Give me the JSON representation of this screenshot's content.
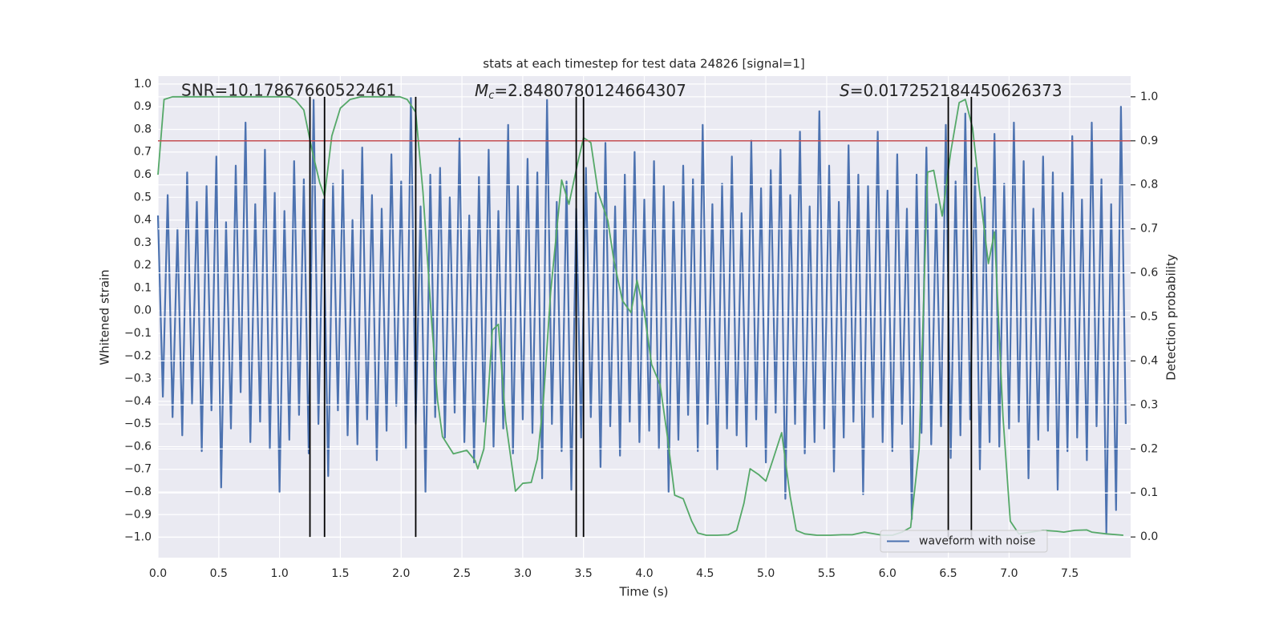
{
  "chart_data": {
    "type": "line",
    "title": "stats at each timestep for test data 24826 [signal=1]",
    "xlabel": "Time (s)",
    "ylabel": "Whitened strain",
    "y2label": "Detection probability",
    "grid": true,
    "legend": "lower right",
    "xlim": [
      0,
      8.0
    ],
    "xticks": [
      {
        "value": 0,
        "label": "0.0"
      },
      0.5,
      {
        "value": 1,
        "label": "1.0"
      },
      1.5,
      {
        "value": 2,
        "label": "2.0"
      },
      2.5,
      {
        "value": 3,
        "label": "3.0"
      },
      3.5,
      {
        "value": 4,
        "label": "4.0"
      },
      4.5,
      {
        "value": 5,
        "label": "5.0"
      },
      5.5,
      {
        "value": 6,
        "label": "6.0"
      },
      6.5,
      {
        "value": 7,
        "label": "7.0"
      },
      7.5
    ],
    "ylim": [
      -1.09,
      1.035
    ],
    "yticks": [
      {
        "value": -1,
        "label": "−1.0"
      },
      {
        "value": -0.9,
        "label": "−0.9"
      },
      {
        "value": -0.8,
        "label": "−0.8"
      },
      {
        "value": -0.7,
        "label": "−0.7"
      },
      {
        "value": -0.6,
        "label": "−0.6"
      },
      {
        "value": -0.5,
        "label": "−0.5"
      },
      {
        "value": -0.4,
        "label": "−0.4"
      },
      {
        "value": -0.3,
        "label": "−0.3"
      },
      {
        "value": -0.2,
        "label": "−0.2"
      },
      {
        "value": -0.1,
        "label": "−0.1"
      },
      {
        "value": 0,
        "label": "0.0"
      },
      0.1,
      0.2,
      0.3,
      0.4,
      0.5,
      0.6,
      0.7,
      0.8,
      0.9,
      {
        "value": 1,
        "label": "1.0"
      }
    ],
    "y2lim": [
      -0.047,
      1.047
    ],
    "y2ticks": [
      {
        "value": 0,
        "label": "0.0"
      },
      0.1,
      0.2,
      0.3,
      0.4,
      0.5,
      0.6,
      0.7,
      0.8,
      0.9,
      {
        "value": 1,
        "label": "1.0"
      }
    ],
    "series": [
      {
        "name": "waveform with noise",
        "color": "#4c72b0",
        "x": [
          0,
          0.04,
          0.08,
          0.12,
          0.16,
          0.2,
          0.24,
          0.28,
          0.32,
          0.36,
          0.4,
          0.44,
          0.48,
          0.52,
          0.56,
          0.6,
          0.64,
          0.68,
          0.72,
          0.76,
          0.8,
          0.84,
          0.88,
          0.92,
          0.96,
          1,
          1.04,
          1.08,
          1.12,
          1.16,
          1.2,
          1.24,
          1.28,
          1.32,
          1.36,
          1.4,
          1.44,
          1.48,
          1.52,
          1.56,
          1.6,
          1.64,
          1.68,
          1.72,
          1.76,
          1.8,
          1.84,
          1.88,
          1.92,
          1.96,
          2,
          2.04,
          2.08,
          2.12,
          2.16,
          2.2,
          2.24,
          2.28,
          2.32,
          2.36,
          2.4,
          2.44,
          2.48,
          2.52,
          2.56,
          2.6,
          2.64,
          2.68,
          2.72,
          2.76,
          2.8,
          2.84,
          2.88,
          2.92,
          2.96,
          3,
          3.04,
          3.08,
          3.12,
          3.16,
          3.2,
          3.24,
          3.28,
          3.32,
          3.36,
          3.4,
          3.44,
          3.48,
          3.52,
          3.56,
          3.6,
          3.64,
          3.68,
          3.72,
          3.76,
          3.8,
          3.84,
          3.88,
          3.92,
          3.96,
          4,
          4.04,
          4.08,
          4.12,
          4.16,
          4.2,
          4.24,
          4.28,
          4.32,
          4.36,
          4.4,
          4.44,
          4.48,
          4.52,
          4.56,
          4.6,
          4.64,
          4.68,
          4.72,
          4.76,
          4.8,
          4.84,
          4.88,
          4.92,
          4.96,
          5,
          5.04,
          5.08,
          5.12,
          5.16,
          5.2,
          5.24,
          5.28,
          5.32,
          5.36,
          5.4,
          5.44,
          5.48,
          5.52,
          5.56,
          5.6,
          5.64,
          5.68,
          5.72,
          5.76,
          5.8,
          5.84,
          5.88,
          5.92,
          5.96,
          6,
          6.04,
          6.08,
          6.12,
          6.16,
          6.2,
          6.24,
          6.28,
          6.32,
          6.36,
          6.4,
          6.44,
          6.48,
          6.52,
          6.56,
          6.6,
          6.64,
          6.68,
          6.72,
          6.76,
          6.8,
          6.84,
          6.88,
          6.92,
          6.96,
          7,
          7.04,
          7.08,
          7.12,
          7.16,
          7.2,
          7.24,
          7.28,
          7.32,
          7.36,
          7.4,
          7.44,
          7.48,
          7.52,
          7.56,
          7.6,
          7.64,
          7.68,
          7.72,
          7.76,
          7.8,
          7.84,
          7.88,
          7.92,
          7.96
        ],
        "values": [
          0.42,
          -0.38,
          0.51,
          -0.47,
          0.36,
          -0.55,
          0.61,
          -0.41,
          0.48,
          -0.62,
          0.55,
          -0.44,
          0.68,
          -0.78,
          0.39,
          -0.52,
          0.64,
          -0.36,
          0.83,
          -0.58,
          0.47,
          -0.49,
          0.71,
          -0.61,
          0.52,
          -0.8,
          0.44,
          -0.57,
          0.66,
          -0.46,
          0.58,
          -0.63,
          0.93,
          -0.5,
          0.49,
          -0.73,
          0.56,
          -0.44,
          0.62,
          -0.55,
          0.4,
          -0.59,
          0.72,
          -0.48,
          0.51,
          -0.66,
          0.45,
          -0.53,
          0.69,
          -0.42,
          0.57,
          -0.61,
          0.94,
          -0.5,
          0.46,
          -0.8,
          0.6,
          -0.47,
          0.63,
          -0.56,
          0.5,
          -0.45,
          0.76,
          -0.58,
          0.42,
          -0.67,
          0.59,
          -0.49,
          0.71,
          -0.6,
          0.44,
          -0.52,
          0.82,
          -0.63,
          0.55,
          -0.48,
          0.67,
          -0.54,
          0.61,
          -0.74,
          0.93,
          -0.5,
          0.48,
          -0.62,
          0.57,
          -0.79,
          0.45,
          -0.56,
          0.63,
          -0.47,
          0.52,
          -0.69,
          0.74,
          -0.51,
          0.46,
          -0.64,
          0.6,
          -0.49,
          0.7,
          -0.58,
          0.49,
          -0.53,
          0.66,
          -0.61,
          0.55,
          -0.8,
          0.48,
          -0.57,
          0.64,
          -0.46,
          0.58,
          -0.62,
          0.82,
          -0.5,
          0.47,
          -0.7,
          0.56,
          -0.52,
          0.68,
          -0.55,
          0.43,
          -0.6,
          0.75,
          -0.48,
          0.54,
          -0.67,
          0.62,
          -0.45,
          0.71,
          -0.83,
          0.51,
          -0.5,
          0.79,
          -0.63,
          0.46,
          -0.58,
          0.88,
          -0.52,
          0.64,
          -0.71,
          0.48,
          -0.56,
          0.73,
          -0.49,
          0.6,
          -0.81,
          0.55,
          -0.47,
          0.79,
          -0.58,
          0.53,
          -0.62,
          0.69,
          -0.5,
          0.45,
          -0.92,
          0.6,
          -0.54,
          0.72,
          -0.59,
          0.47,
          -0.51,
          0.82,
          -0.65,
          0.57,
          -0.55,
          0.87,
          -0.48,
          0.63,
          -0.7,
          0.5,
          -0.58,
          0.78,
          -0.6,
          0.56,
          -0.52,
          0.83,
          -0.49,
          0.66,
          -0.74,
          0.45,
          -0.57,
          0.68,
          -0.53,
          0.61,
          -0.79,
          0.52,
          -0.62,
          0.77,
          -0.56,
          0.49,
          -0.66,
          0.83,
          -0.51,
          0.58,
          -0.98,
          0.47,
          -0.88,
          0.9,
          -0.5
        ]
      },
      {
        "color": "#55a868",
        "axis": "y2",
        "x": [
          0,
          0.05,
          0.12,
          1.08,
          1.13,
          1.2,
          1.27,
          1.33,
          1.37,
          1.43,
          1.5,
          1.58,
          1.67,
          1.99,
          2.05,
          2.12,
          2.18,
          2.25,
          2.3,
          2.34,
          2.43,
          2.54,
          2.61,
          2.63,
          2.68,
          2.72,
          2.75,
          2.8,
          2.86,
          2.94,
          3,
          3.07,
          3.12,
          3.17,
          3.23,
          3.32,
          3.38,
          3.45,
          3.5,
          3.56,
          3.62,
          3.7,
          3.75,
          3.82,
          3.89,
          3.94,
          4,
          4.06,
          4.13,
          4.19,
          4.25,
          4.32,
          4.39,
          4.44,
          4.51,
          4.6,
          4.69,
          4.76,
          4.82,
          4.87,
          4.94,
          5,
          5.06,
          5.13,
          5.2,
          5.25,
          5.32,
          5.42,
          5.53,
          5.63,
          5.71,
          5.81,
          5.89,
          5.96,
          6.04,
          6.12,
          6.19,
          6.26,
          6.33,
          6.38,
          6.45,
          6.52,
          6.59,
          6.64,
          6.7,
          6.75,
          6.83,
          6.88,
          6.95,
          7.01,
          7.08,
          7.18,
          7.28,
          7.39,
          7.45,
          7.54,
          7.64,
          7.68,
          7.8,
          7.94
        ],
        "values": [
          0.823,
          0.994,
          1.0,
          1.0,
          0.993,
          0.97,
          0.875,
          0.805,
          0.774,
          0.911,
          0.974,
          0.994,
          1.0,
          1.0,
          0.994,
          0.965,
          0.783,
          0.492,
          0.31,
          0.228,
          0.189,
          0.197,
          0.173,
          0.155,
          0.2,
          0.34,
          0.47,
          0.483,
          0.264,
          0.104,
          0.122,
          0.124,
          0.177,
          0.31,
          0.556,
          0.811,
          0.756,
          0.847,
          0.907,
          0.896,
          0.783,
          0.719,
          0.628,
          0.537,
          0.51,
          0.583,
          0.51,
          0.392,
          0.346,
          0.228,
          0.095,
          0.087,
          0.036,
          0.009,
          0.004,
          0.004,
          0.005,
          0.015,
          0.077,
          0.155,
          0.142,
          0.127,
          0.177,
          0.237,
          0.091,
          0.015,
          0.007,
          0.004,
          0.004,
          0.005,
          0.005,
          0.011,
          0.007,
          0.004,
          0.004,
          0.011,
          0.022,
          0.2,
          0.829,
          0.833,
          0.729,
          0.874,
          0.987,
          0.994,
          0.929,
          0.803,
          0.621,
          0.693,
          0.273,
          0.036,
          0.007,
          0.011,
          0.015,
          0.013,
          0.011,
          0.015,
          0.016,
          0.011,
          0.007,
          0.004
        ]
      }
    ],
    "hlines": [
      {
        "value": 0.9,
        "axis": "y2",
        "color": "#c44e52"
      }
    ],
    "vlines": {
      "color": "#000000",
      "values": [
        1.25,
        1.37,
        2.12,
        3.44,
        3.5,
        6.5,
        6.69
      ]
    },
    "annotations": [
      {
        "text": "SNR=10.17867660522461"
      },
      {
        "symbol": "M",
        "subscript": "c",
        "text": "=2.8480780124664307"
      },
      {
        "symbol": "S",
        "text": "=0.017252184450626373"
      }
    ]
  }
}
